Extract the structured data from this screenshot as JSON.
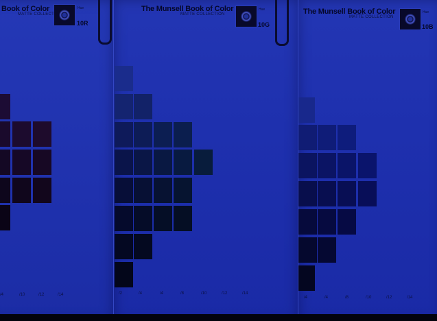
{
  "pages": [
    {
      "title": "Book of Color",
      "subtitle": "MATTE COLLECTION",
      "hue_label": "Hue",
      "code": "10R",
      "ticks": [
        "/4",
        "/10",
        "/12",
        "/14"
      ]
    },
    {
      "title": "The Munsell Book of Color",
      "subtitle": "MATTE COLLECTION",
      "hue_label": "Hue",
      "code": "10G",
      "ticks": [
        "/2",
        "/4",
        "/4",
        "/8",
        "/10",
        "/12",
        "/14"
      ]
    },
    {
      "title": "The Munsell Book of Color",
      "subtitle": "MATTE COLLECTION",
      "hue_label": "Hue",
      "code": "10B",
      "ticks": [
        "/4",
        "/4",
        "/8",
        "/10",
        "/12",
        "/14"
      ]
    }
  ],
  "icons": [
    "munsell-logo-icon",
    "binder-clip-icon"
  ],
  "colors": {
    "page": "#2034b0",
    "chip_red_tint": "#1c0a2a",
    "chip_green_tint": "#0a1f3a",
    "chip_blue_tint": "#0a1268"
  }
}
